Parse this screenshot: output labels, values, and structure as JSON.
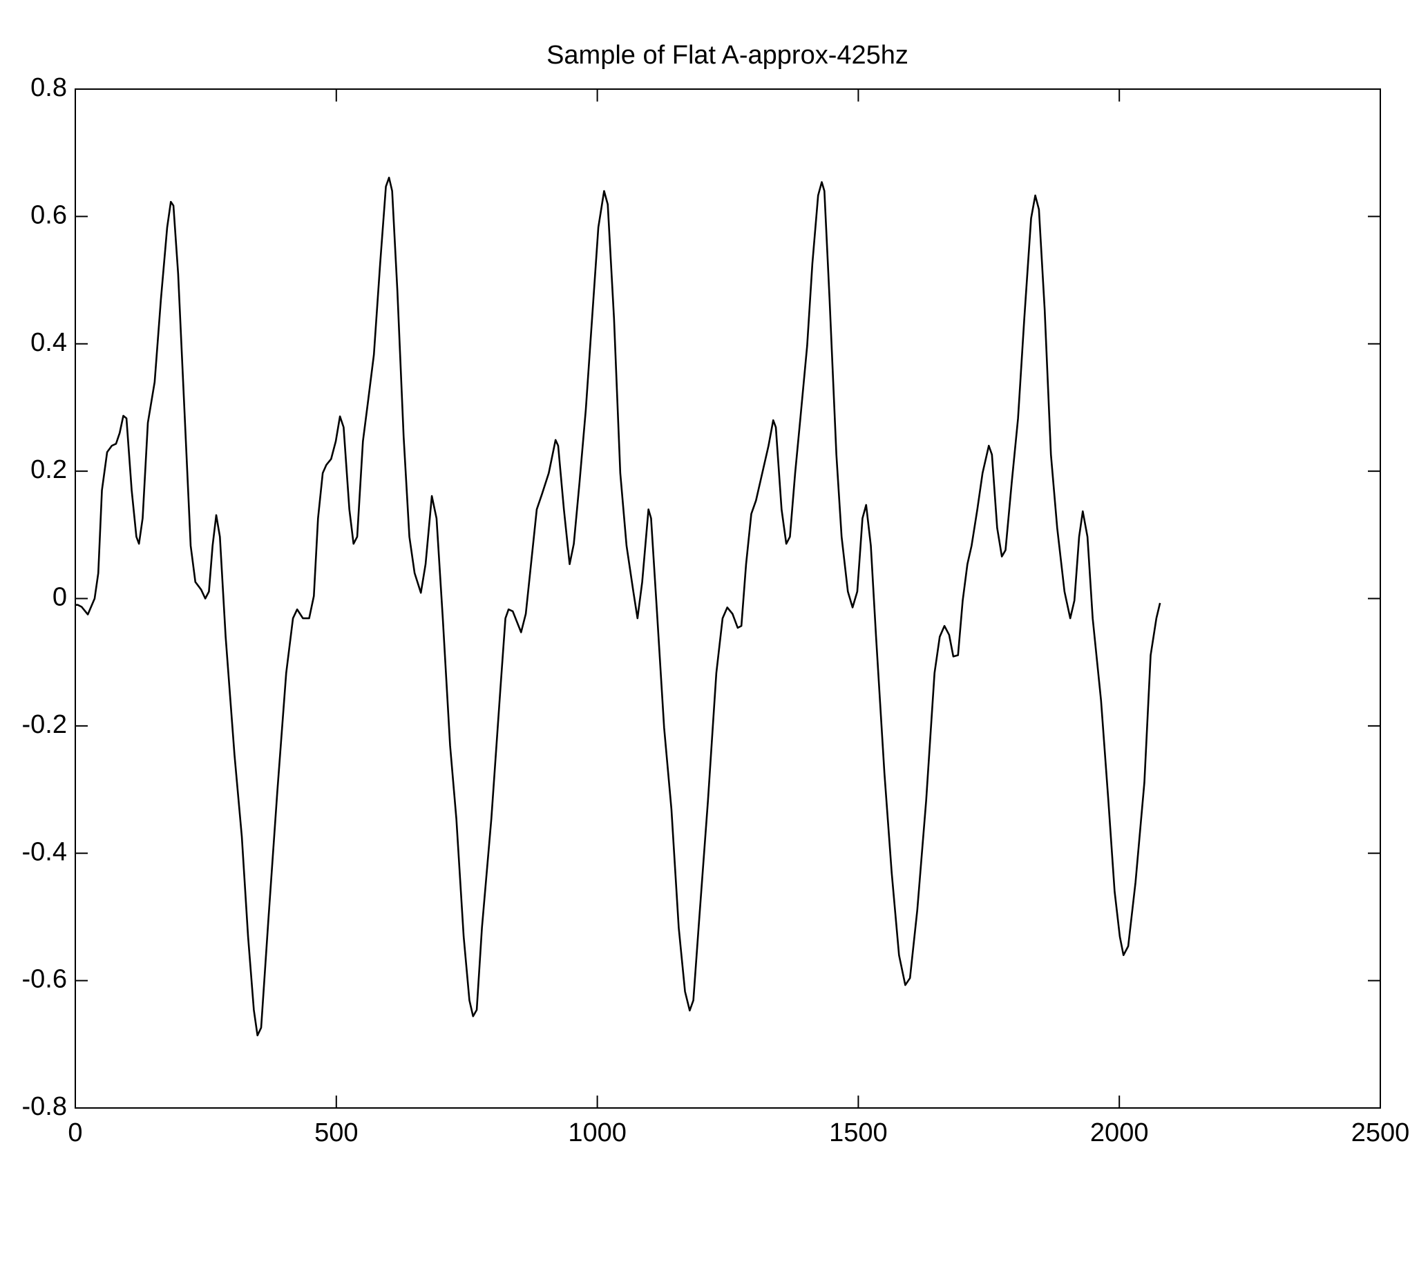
{
  "chart_data": {
    "type": "line",
    "title": "Sample of Flat A-approx-425hz",
    "color": "#000000",
    "xlim": [
      0,
      2500
    ],
    "xticks": [
      0,
      500,
      1000,
      1500,
      2000,
      2500
    ],
    "ylim": [
      -0.8,
      0.8
    ],
    "yticks": [
      -0.8,
      -0.6,
      -0.4,
      -0.2,
      0,
      0.2,
      0.4,
      0.6,
      0.8
    ],
    "x": [
      0,
      5,
      12,
      24,
      37,
      44,
      51,
      61,
      70,
      78,
      85,
      92,
      98,
      108,
      117,
      122,
      129,
      139,
      152,
      164,
      176,
      183,
      188,
      197,
      209,
      221,
      230,
      241,
      249,
      256,
      263,
      270,
      277,
      288,
      305,
      319,
      331,
      342,
      349,
      356,
      370,
      387,
      404,
      417,
      425,
      436,
      448,
      457,
      465,
      474,
      481,
      490,
      499,
      507,
      514,
      525,
      533,
      540,
      551,
      561,
      572,
      584,
      595,
      601,
      607,
      617,
      629,
      640,
      650,
      662,
      671,
      683,
      692,
      704,
      718,
      730,
      744,
      755,
      762,
      769,
      779,
      797,
      814,
      824,
      830,
      838,
      854,
      863,
      873,
      884,
      894,
      907,
      920,
      925,
      936,
      947,
      955,
      966,
      978,
      990,
      1002,
      1013,
      1020,
      1032,
      1044,
      1056,
      1069,
      1077,
      1086,
      1098,
      1103,
      1114,
      1128,
      1142,
      1156,
      1168,
      1177,
      1184,
      1194,
      1212,
      1228,
      1240,
      1249,
      1259,
      1269,
      1276,
      1285,
      1295,
      1304,
      1316,
      1328,
      1337,
      1342,
      1353,
      1362,
      1369,
      1379,
      1389,
      1402,
      1412,
      1423,
      1430,
      1435,
      1445,
      1458,
      1468,
      1480,
      1489,
      1498,
      1508,
      1515,
      1524,
      1534,
      1550,
      1564,
      1578,
      1590,
      1599,
      1613,
      1630,
      1646,
      1656,
      1665,
      1674,
      1682,
      1691,
      1700,
      1709,
      1717,
      1728,
      1738,
      1750,
      1756,
      1766,
      1775,
      1782,
      1794,
      1806,
      1818,
      1831,
      1839,
      1846,
      1857,
      1869,
      1881,
      1895,
      1906,
      1914,
      1923,
      1930,
      1939,
      1949,
      1965,
      1979,
      1991,
      2001,
      2008,
      2017,
      2031,
      2048,
      2060,
      2071,
      2078
    ],
    "values": [
      -0.01,
      -0.01,
      -0.013,
      -0.025,
      0,
      0.04,
      0.17,
      0.23,
      0.24,
      0.243,
      0.26,
      0.287,
      0.283,
      0.17,
      0.097,
      0.086,
      0.126,
      0.276,
      0.34,
      0.47,
      0.583,
      0.623,
      0.617,
      0.51,
      0.297,
      0.083,
      0.026,
      0.014,
      0,
      0.011,
      0.083,
      0.131,
      0.097,
      -0.06,
      -0.246,
      -0.374,
      -0.531,
      -0.646,
      -0.686,
      -0.674,
      -0.503,
      -0.303,
      -0.117,
      -0.031,
      -0.017,
      -0.031,
      -0.031,
      0.004,
      0.126,
      0.197,
      0.21,
      0.219,
      0.247,
      0.286,
      0.269,
      0.14,
      0.086,
      0.097,
      0.247,
      0.311,
      0.383,
      0.526,
      0.647,
      0.661,
      0.64,
      0.483,
      0.254,
      0.097,
      0.04,
      0.009,
      0.054,
      0.161,
      0.126,
      -0.031,
      -0.231,
      -0.346,
      -0.531,
      -0.631,
      -0.656,
      -0.646,
      -0.517,
      -0.346,
      -0.146,
      -0.031,
      -0.017,
      -0.02,
      -0.053,
      -0.024,
      0.054,
      0.14,
      0.164,
      0.197,
      0.249,
      0.24,
      0.14,
      0.054,
      0.086,
      0.183,
      0.297,
      0.44,
      0.583,
      0.64,
      0.619,
      0.44,
      0.197,
      0.083,
      0.011,
      -0.031,
      0.026,
      0.14,
      0.126,
      -0.017,
      -0.203,
      -0.331,
      -0.517,
      -0.617,
      -0.647,
      -0.631,
      -0.517,
      -0.317,
      -0.117,
      -0.031,
      -0.014,
      -0.024,
      -0.046,
      -0.043,
      0.054,
      0.133,
      0.154,
      0.197,
      0.24,
      0.28,
      0.269,
      0.14,
      0.086,
      0.097,
      0.197,
      0.283,
      0.397,
      0.526,
      0.633,
      0.654,
      0.64,
      0.469,
      0.226,
      0.097,
      0.011,
      -0.014,
      0.011,
      0.126,
      0.147,
      0.083,
      -0.06,
      -0.274,
      -0.431,
      -0.56,
      -0.607,
      -0.596,
      -0.489,
      -0.317,
      -0.117,
      -0.06,
      -0.043,
      -0.057,
      -0.091,
      -0.089,
      -0.003,
      0.054,
      0.083,
      0.14,
      0.197,
      0.24,
      0.226,
      0.111,
      0.066,
      0.076,
      0.183,
      0.283,
      0.44,
      0.597,
      0.633,
      0.611,
      0.454,
      0.226,
      0.111,
      0.011,
      -0.031,
      -0.003,
      0.097,
      0.137,
      0.097,
      -0.031,
      -0.16,
      -0.317,
      -0.46,
      -0.531,
      -0.56,
      -0.546,
      -0.446,
      -0.289,
      -0.089,
      -0.031,
      -0.007
    ]
  }
}
